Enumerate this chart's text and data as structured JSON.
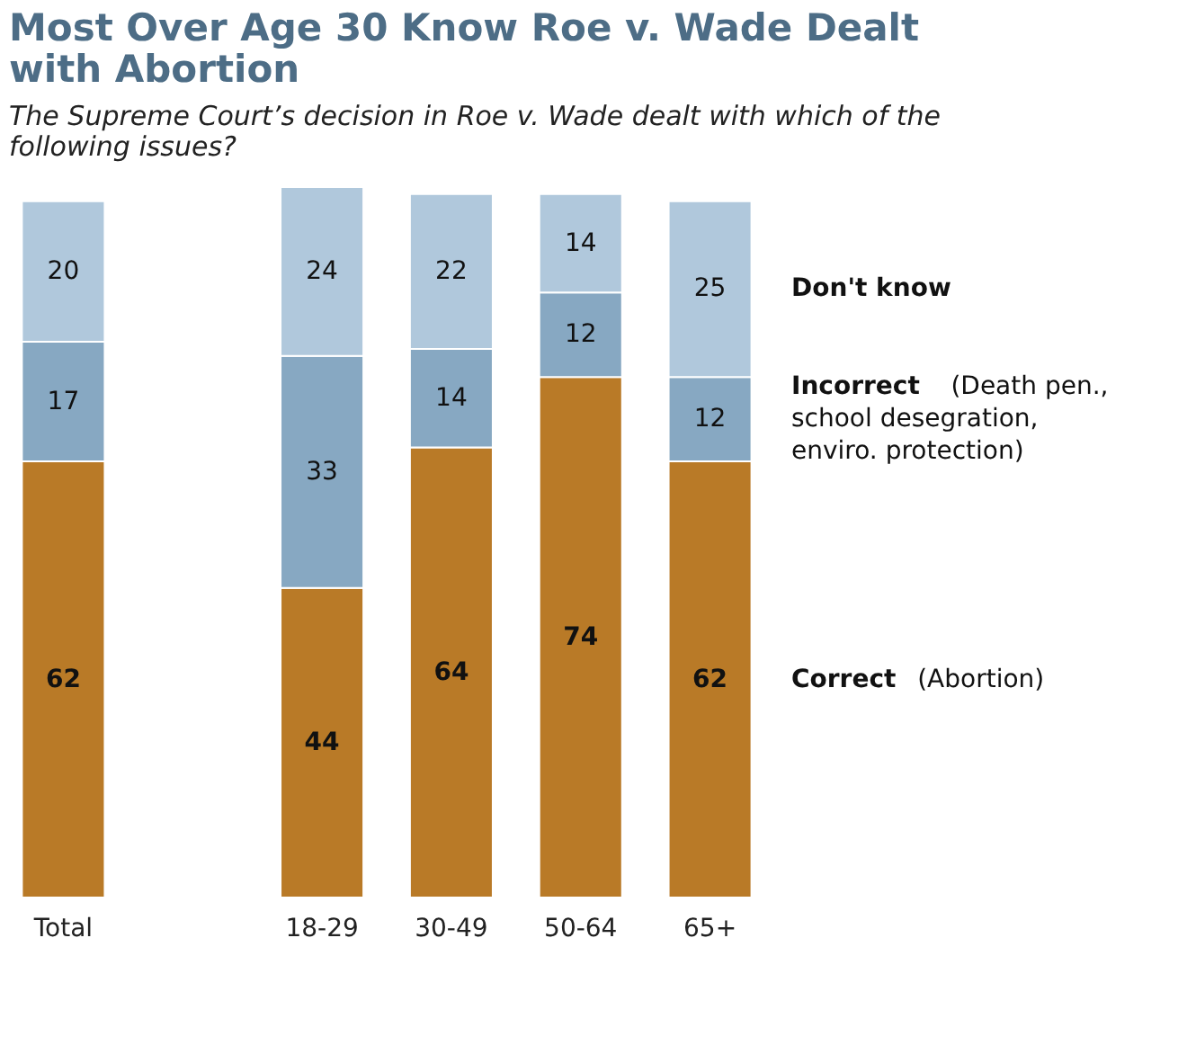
{
  "chart_data": {
    "type": "bar",
    "stacked": true,
    "title": "Most Over Age 30 Know Roe v. Wade Dealt with Abortion",
    "subtitle": "The Supreme Court’s decision in Roe v. Wade dealt with which of the following issues?",
    "categories": [
      "Total",
      null,
      "18-29",
      "30-49",
      "50-64",
      "65+"
    ],
    "series": [
      {
        "name": "Correct (Abortion)",
        "color": "#b97a27",
        "values": [
          62,
          null,
          44,
          64,
          74,
          62
        ]
      },
      {
        "name": "Incorrect (Death pen., school desegration, enviro. protection)",
        "color": "#87a8c2",
        "values": [
          17,
          null,
          33,
          14,
          12,
          12
        ]
      },
      {
        "name": "Don't know",
        "color": "#b0c8dc",
        "values": [
          20,
          null,
          24,
          22,
          14,
          25
        ]
      }
    ],
    "data_labels": true,
    "grid": false,
    "legend": "right",
    "tick_labels": "x"
  }
}
